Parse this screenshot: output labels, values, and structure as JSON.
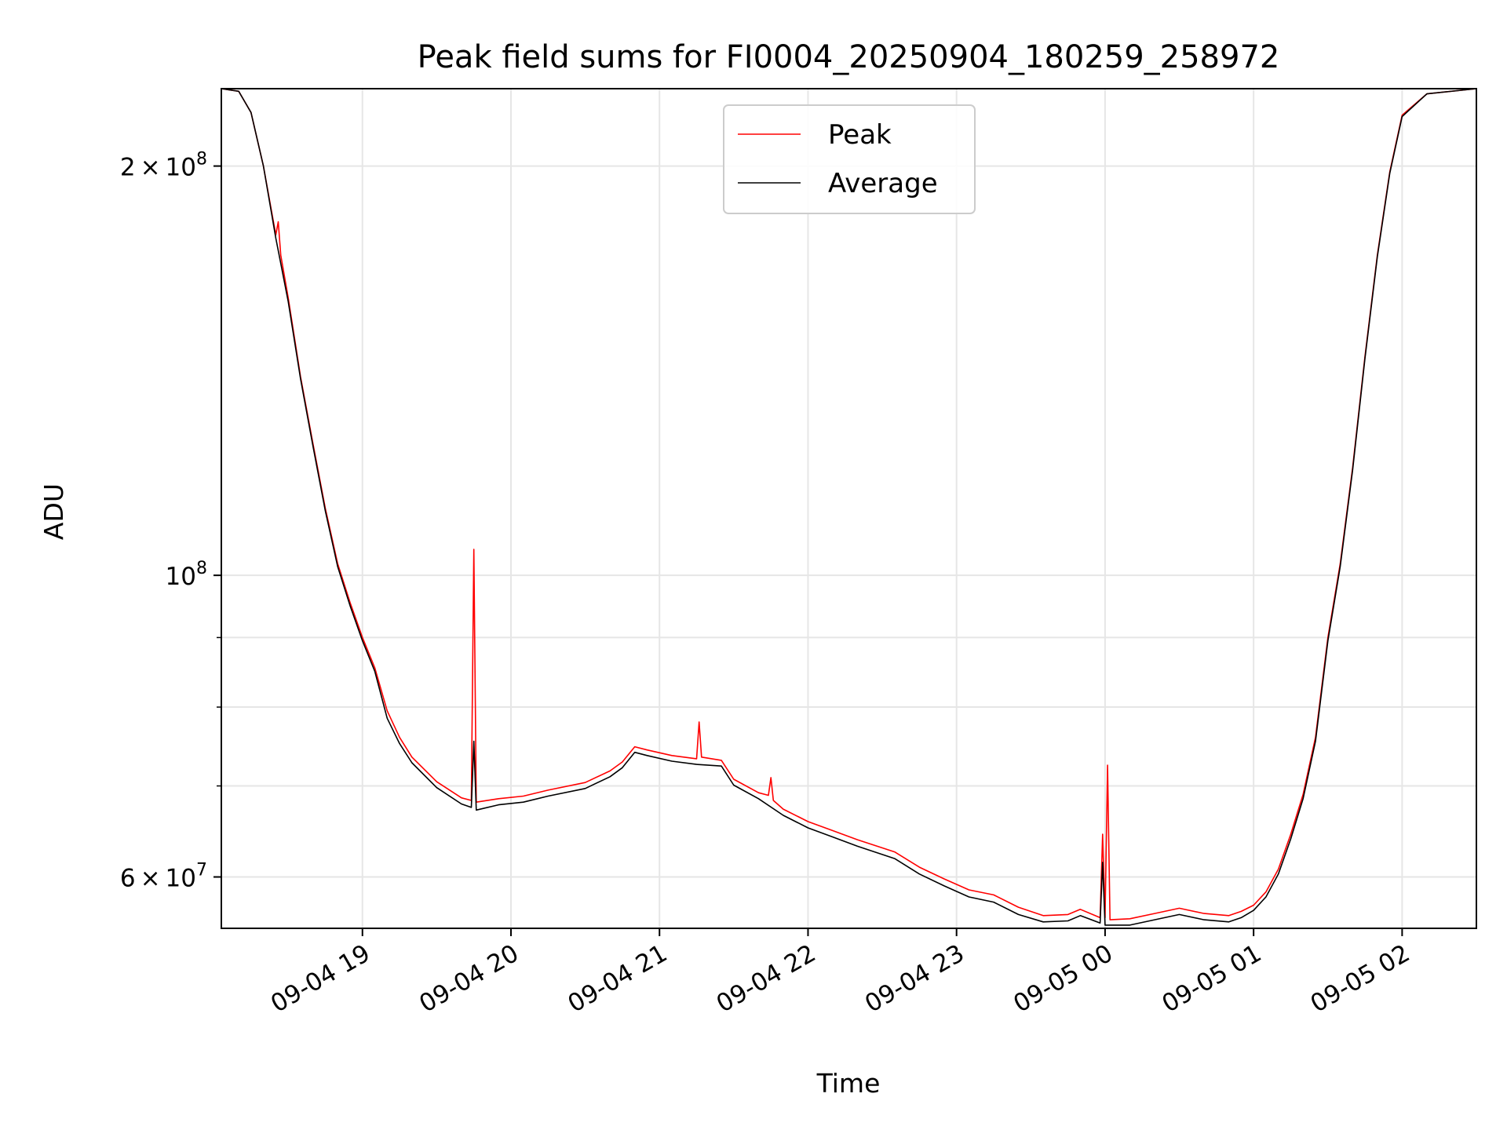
{
  "chart_data": {
    "type": "line",
    "title": "Peak field sums for FI0004_20250904_180259_258972",
    "xlabel": "Time",
    "ylabel": "ADU",
    "y_scale": "log",
    "ylim": [
      55000000,
      228000000
    ],
    "xlim": [
      "2025-09-04 18:03",
      "2025-09-05 02:30"
    ],
    "grid": true,
    "legend_position": "top-center",
    "x_ticks": [
      {
        "label": "09-04 19",
        "value": "2025-09-04 19:00"
      },
      {
        "label": "09-04 20",
        "value": "2025-09-04 20:00"
      },
      {
        "label": "09-04 21",
        "value": "2025-09-04 21:00"
      },
      {
        "label": "09-04 22",
        "value": "2025-09-04 22:00"
      },
      {
        "label": "09-04 23",
        "value": "2025-09-04 23:00"
      },
      {
        "label": "09-05 00",
        "value": "2025-09-05 00:00"
      },
      {
        "label": "09-05 01",
        "value": "2025-09-05 01:00"
      },
      {
        "label": "09-05 02",
        "value": "2025-09-05 02:00"
      }
    ],
    "y_ticks": [
      {
        "value": 60000000,
        "mantissa": "6",
        "base": "10",
        "exp": "7"
      },
      {
        "value": 100000000,
        "mantissa": "",
        "base": "10",
        "exp": "8"
      },
      {
        "value": 200000000,
        "mantissa": "2",
        "base": "10",
        "exp": "8"
      }
    ],
    "y_minor_ticks": [
      70000000,
      80000000,
      90000000
    ],
    "series": [
      {
        "name": "Peak",
        "color": "#ff0000",
        "points": [
          [
            "2025-09-04 18:03",
            228000000
          ],
          [
            "2025-09-04 18:10",
            227000000
          ],
          [
            "2025-09-04 18:15",
            219000000
          ],
          [
            "2025-09-04 18:20",
            200000000
          ],
          [
            "2025-09-04 18:25",
            178000000
          ],
          [
            "2025-09-04 18:26",
            182000000
          ],
          [
            "2025-09-04 18:27",
            172000000
          ],
          [
            "2025-09-04 18:30",
            160000000
          ],
          [
            "2025-09-04 18:35",
            140000000
          ],
          [
            "2025-09-04 18:40",
            125000000
          ],
          [
            "2025-09-04 18:45",
            112000000
          ],
          [
            "2025-09-04 18:50",
            102000000
          ],
          [
            "2025-09-04 18:55",
            95500000
          ],
          [
            "2025-09-04 19:00",
            90000000
          ],
          [
            "2025-09-04 19:05",
            85500000
          ],
          [
            "2025-09-04 19:10",
            79500000
          ],
          [
            "2025-09-04 19:15",
            76000000
          ],
          [
            "2025-09-04 19:20",
            73500000
          ],
          [
            "2025-09-04 19:30",
            70500000
          ],
          [
            "2025-09-04 19:40",
            68600000
          ],
          [
            "2025-09-04 19:44",
            68300000
          ],
          [
            "2025-09-04 19:45",
            104500000
          ],
          [
            "2025-09-04 19:46",
            68100000
          ],
          [
            "2025-09-04 19:55",
            68500000
          ],
          [
            "2025-09-04 20:05",
            68800000
          ],
          [
            "2025-09-04 20:15",
            69500000
          ],
          [
            "2025-09-04 20:30",
            70400000
          ],
          [
            "2025-09-04 20:40",
            71800000
          ],
          [
            "2025-09-04 20:45",
            72900000
          ],
          [
            "2025-09-04 20:50",
            74800000
          ],
          [
            "2025-09-04 20:55",
            74400000
          ],
          [
            "2025-09-04 21:05",
            73700000
          ],
          [
            "2025-09-04 21:15",
            73300000
          ],
          [
            "2025-09-04 21:16",
            78000000
          ],
          [
            "2025-09-04 21:17",
            73500000
          ],
          [
            "2025-09-04 21:25",
            73100000
          ],
          [
            "2025-09-04 21:30",
            70800000
          ],
          [
            "2025-09-04 21:40",
            69200000
          ],
          [
            "2025-09-04 21:44",
            68900000
          ],
          [
            "2025-09-04 21:45",
            71000000
          ],
          [
            "2025-09-04 21:46",
            68300000
          ],
          [
            "2025-09-04 21:50",
            67300000
          ],
          [
            "2025-09-04 22:00",
            65900000
          ],
          [
            "2025-09-04 22:10",
            64900000
          ],
          [
            "2025-09-04 22:20",
            63900000
          ],
          [
            "2025-09-04 22:35",
            62600000
          ],
          [
            "2025-09-04 22:45",
            61000000
          ],
          [
            "2025-09-04 22:55",
            59800000
          ],
          [
            "2025-09-04 23:05",
            58700000
          ],
          [
            "2025-09-04 23:15",
            58200000
          ],
          [
            "2025-09-04 23:25",
            57000000
          ],
          [
            "2025-09-04 23:35",
            56200000
          ],
          [
            "2025-09-04 23:45",
            56300000
          ],
          [
            "2025-09-04 23:50",
            56800000
          ],
          [
            "2025-09-04 23:58",
            56000000
          ],
          [
            "2025-09-04 23:59",
            64500000
          ],
          [
            "2025-09-05 00:00",
            56000000
          ],
          [
            "2025-09-05 00:01",
            72500000
          ],
          [
            "2025-09-05 00:02",
            55800000
          ],
          [
            "2025-09-05 00:10",
            55900000
          ],
          [
            "2025-09-05 00:20",
            56400000
          ],
          [
            "2025-09-05 00:30",
            56900000
          ],
          [
            "2025-09-05 00:40",
            56400000
          ],
          [
            "2025-09-05 00:50",
            56200000
          ],
          [
            "2025-09-05 00:55",
            56600000
          ],
          [
            "2025-09-05 01:00",
            57200000
          ],
          [
            "2025-09-05 01:05",
            58500000
          ],
          [
            "2025-09-05 01:10",
            60800000
          ],
          [
            "2025-09-05 01:15",
            64500000
          ],
          [
            "2025-09-05 01:20",
            69000000
          ],
          [
            "2025-09-05 01:25",
            76000000
          ],
          [
            "2025-09-05 01:30",
            90000000
          ],
          [
            "2025-09-05 01:35",
            102000000
          ],
          [
            "2025-09-05 01:40",
            120000000
          ],
          [
            "2025-09-05 01:45",
            145000000
          ],
          [
            "2025-09-05 01:50",
            172000000
          ],
          [
            "2025-09-05 01:55",
            198000000
          ],
          [
            "2025-09-05 02:00",
            218000000
          ],
          [
            "2025-09-05 02:10",
            226000000
          ],
          [
            "2025-09-05 02:30",
            228000000
          ]
        ]
      },
      {
        "name": "Average",
        "color": "#000000",
        "points": [
          [
            "2025-09-04 18:03",
            228000000
          ],
          [
            "2025-09-04 18:10",
            227000000
          ],
          [
            "2025-09-04 18:15",
            219000000
          ],
          [
            "2025-09-04 18:20",
            200000000
          ],
          [
            "2025-09-04 18:25",
            177000000
          ],
          [
            "2025-09-04 18:30",
            159000000
          ],
          [
            "2025-09-04 18:35",
            139500000
          ],
          [
            "2025-09-04 18:40",
            124500000
          ],
          [
            "2025-09-04 18:45",
            111500000
          ],
          [
            "2025-09-04 18:50",
            101500000
          ],
          [
            "2025-09-04 18:55",
            95000000
          ],
          [
            "2025-09-04 19:00",
            89500000
          ],
          [
            "2025-09-04 19:05",
            85000000
          ],
          [
            "2025-09-04 19:10",
            78500000
          ],
          [
            "2025-09-04 19:15",
            75200000
          ],
          [
            "2025-09-04 19:20",
            72800000
          ],
          [
            "2025-09-04 19:30",
            69800000
          ],
          [
            "2025-09-04 19:40",
            67900000
          ],
          [
            "2025-09-04 19:44",
            67500000
          ],
          [
            "2025-09-04 19:45",
            75500000
          ],
          [
            "2025-09-04 19:46",
            67200000
          ],
          [
            "2025-09-04 19:55",
            67800000
          ],
          [
            "2025-09-04 20:05",
            68100000
          ],
          [
            "2025-09-04 20:15",
            68800000
          ],
          [
            "2025-09-04 20:30",
            69700000
          ],
          [
            "2025-09-04 20:40",
            71100000
          ],
          [
            "2025-09-04 20:45",
            72200000
          ],
          [
            "2025-09-04 20:50",
            74100000
          ],
          [
            "2025-09-04 20:55",
            73700000
          ],
          [
            "2025-09-04 21:05",
            73000000
          ],
          [
            "2025-09-04 21:15",
            72600000
          ],
          [
            "2025-09-04 21:25",
            72400000
          ],
          [
            "2025-09-04 21:30",
            70100000
          ],
          [
            "2025-09-04 21:40",
            68500000
          ],
          [
            "2025-09-04 21:50",
            66600000
          ],
          [
            "2025-09-04 22:00",
            65200000
          ],
          [
            "2025-09-04 22:10",
            64200000
          ],
          [
            "2025-09-04 22:20",
            63200000
          ],
          [
            "2025-09-04 22:35",
            61900000
          ],
          [
            "2025-09-04 22:45",
            60300000
          ],
          [
            "2025-09-04 22:55",
            59100000
          ],
          [
            "2025-09-04 23:05",
            58000000
          ],
          [
            "2025-09-04 23:15",
            57500000
          ],
          [
            "2025-09-04 23:25",
            56300000
          ],
          [
            "2025-09-04 23:35",
            55600000
          ],
          [
            "2025-09-04 23:45",
            55700000
          ],
          [
            "2025-09-04 23:50",
            56200000
          ],
          [
            "2025-09-04 23:58",
            55500000
          ],
          [
            "2025-09-04 23:59",
            61500000
          ],
          [
            "2025-09-05 00:00",
            55300000
          ],
          [
            "2025-09-05 00:10",
            55300000
          ],
          [
            "2025-09-05 00:20",
            55800000
          ],
          [
            "2025-09-05 00:30",
            56300000
          ],
          [
            "2025-09-05 00:40",
            55800000
          ],
          [
            "2025-09-05 00:50",
            55600000
          ],
          [
            "2025-09-05 00:55",
            56000000
          ],
          [
            "2025-09-05 01:00",
            56700000
          ],
          [
            "2025-09-05 01:05",
            58000000
          ],
          [
            "2025-09-05 01:10",
            60300000
          ],
          [
            "2025-09-05 01:15",
            64000000
          ],
          [
            "2025-09-05 01:20",
            68500000
          ],
          [
            "2025-09-05 01:25",
            75500000
          ],
          [
            "2025-09-05 01:30",
            89500000
          ],
          [
            "2025-09-05 01:35",
            101500000
          ],
          [
            "2025-09-05 01:40",
            119500000
          ],
          [
            "2025-09-05 01:45",
            144500000
          ],
          [
            "2025-09-05 01:50",
            171500000
          ],
          [
            "2025-09-05 01:55",
            197500000
          ],
          [
            "2025-09-05 02:00",
            217500000
          ],
          [
            "2025-09-05 02:10",
            226000000
          ],
          [
            "2025-09-05 02:30",
            228000000
          ]
        ]
      }
    ]
  }
}
